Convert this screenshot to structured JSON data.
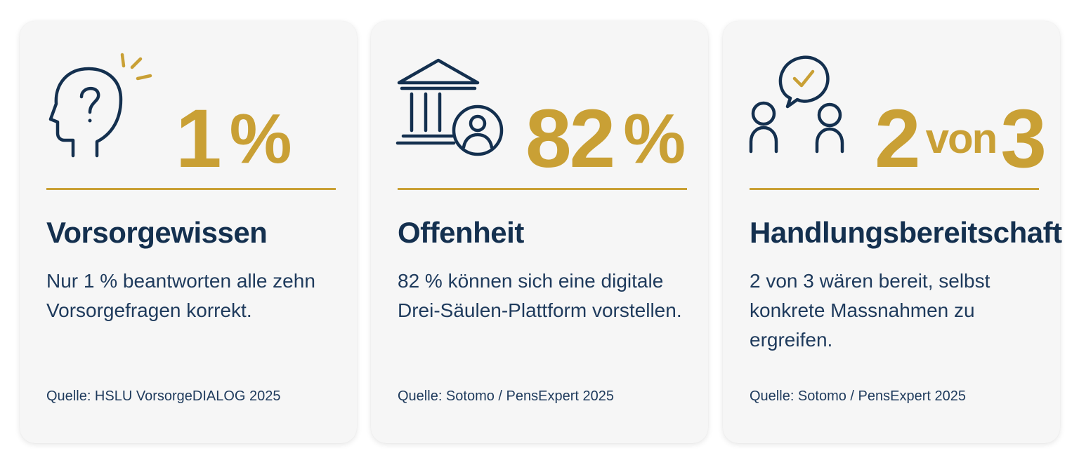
{
  "colors": {
    "accent": "#c9a035",
    "navy": "#14304f",
    "card_background": "#f6f6f6"
  },
  "cards": [
    {
      "icon": "head-question-icon",
      "stat": {
        "number": "1",
        "unit": "%"
      },
      "heading": "Vorsorgewissen",
      "description": "Nur 1 % beantworten alle zehn Vorsorgefragen korrekt.",
      "source": "Quelle: HSLU VorsorgeDIALOG 2025"
    },
    {
      "icon": "bank-person-icon",
      "stat": {
        "number": "82",
        "unit": "%"
      },
      "heading": "Offenheit",
      "description": "82 % können sich eine digitale Drei-Säulen-Plattform vorstellen.",
      "source": "Quelle: Sotomo / PensExpert 2025"
    },
    {
      "icon": "people-checkmark-icon",
      "stat": {
        "number": "2",
        "middle": "von",
        "unit": "3"
      },
      "heading": "Handlungsbereitschaft",
      "description": "2 von 3 wären bereit, selbst konkrete Massnahmen zu ergreifen.",
      "source": "Quelle: Sotomo / PensExpert 2025"
    }
  ]
}
